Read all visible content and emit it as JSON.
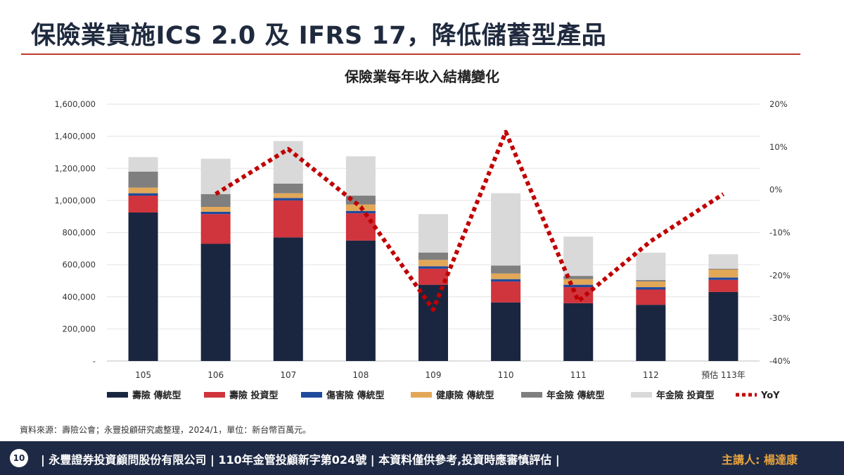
{
  "slide": {
    "title": "保險業實施ICS 2.0 及 IFRS 17，降低儲蓄型產品",
    "source": "資料來源：壽險公會；永豐投顧研究處整理，2024/1，單位：新台幣百萬元。",
    "page_number": "10",
    "footer_text": "| 永豐證券投資顧問股份有限公司 | 110年金管投顧新字第024號 | 本資料僅供參考,投資時應審慎評估 |",
    "speaker": "主講人: 楊達康"
  },
  "colors": {
    "accent_line": "#c0392b",
    "footer_bg": "#1e2a45",
    "speaker_text": "#e8a33d"
  },
  "chart_data": {
    "type": "bar",
    "stacked": true,
    "title": "保險業每年收入結構變化",
    "categories": [
      "105",
      "106",
      "107",
      "108",
      "109",
      "110",
      "111",
      "112",
      "預估 113年"
    ],
    "y_left": {
      "min": 0,
      "max": 1600000,
      "step": 200000,
      "tick_labels": [
        "-",
        "200,000",
        "400,000",
        "600,000",
        "800,000",
        "1,000,000",
        "1,200,000",
        "1,400,000",
        "1,600,000"
      ]
    },
    "y_right": {
      "min": -40,
      "max": 20,
      "step": 10,
      "tick_labels": [
        "-40%",
        "-30%",
        "-20%",
        "-10%",
        "0%",
        "10%",
        "20%"
      ]
    },
    "grid": true,
    "legend_position": "bottom",
    "series": [
      {
        "name": "壽險 傳統型",
        "color": "#1a2640",
        "values": [
          925000,
          730000,
          770000,
          750000,
          475000,
          365000,
          360000,
          350000,
          430000
        ]
      },
      {
        "name": "壽險 投資型",
        "color": "#d0343c",
        "values": [
          105000,
          185000,
          230000,
          170000,
          100000,
          130000,
          100000,
          95000,
          75000
        ]
      },
      {
        "name": "傷害險 傳統型",
        "color": "#1f4a9c",
        "values": [
          15000,
          15000,
          15000,
          15000,
          15000,
          15000,
          15000,
          15000,
          15000
        ]
      },
      {
        "name": "健康險 傳統型",
        "color": "#e2a858",
        "values": [
          35000,
          30000,
          30000,
          40000,
          40000,
          35000,
          35000,
          35000,
          50000
        ]
      },
      {
        "name": "年金險 傳統型",
        "color": "#7f7f7f",
        "values": [
          100000,
          80000,
          60000,
          55000,
          45000,
          50000,
          20000,
          10000,
          5000
        ]
      },
      {
        "name": "年金險 投資型",
        "color": "#d9d9d9",
        "values": [
          90000,
          220000,
          265000,
          245000,
          240000,
          450000,
          245000,
          170000,
          90000
        ]
      }
    ],
    "line_series": {
      "name": "YoY",
      "color": "#c00000",
      "axis": "right",
      "values": [
        null,
        -1,
        9.5,
        -4,
        -28,
        13.5,
        -26,
        -12,
        -1
      ]
    }
  }
}
